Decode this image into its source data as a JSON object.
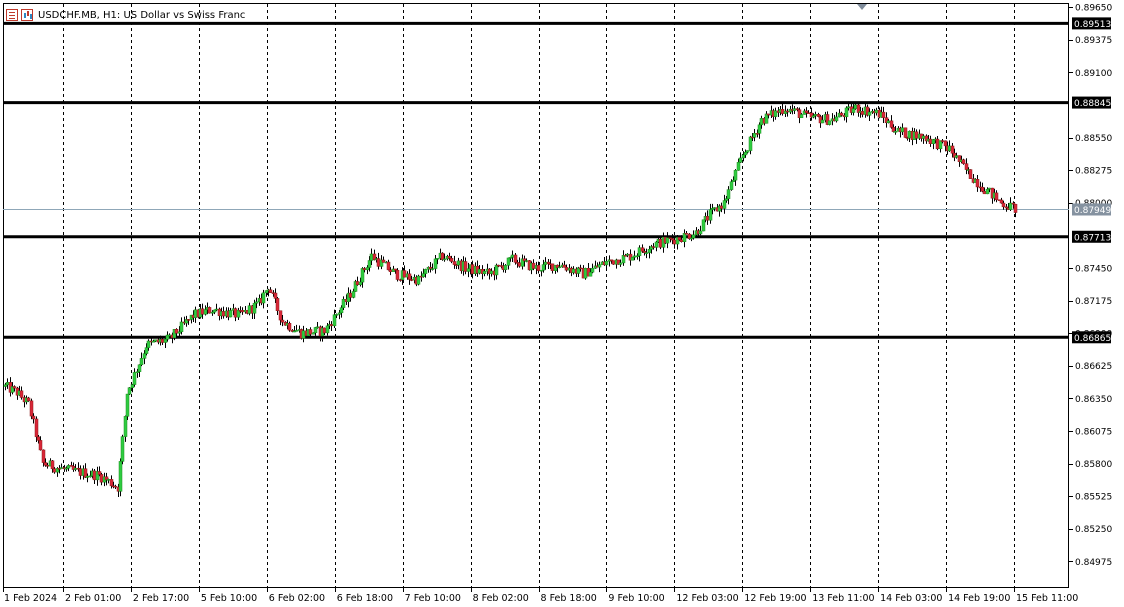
{
  "window": {
    "title": "USDCHF.MB, H1:  US Dollar vs Swiss Franc"
  },
  "icons": {
    "list": "list-icon",
    "chart": "chart-type-icon",
    "scroll": "scroll-marker-icon"
  },
  "colors": {
    "bull": "#2ecc40",
    "bull_dark": "#1e8c1e",
    "bear": "#d92638",
    "level_line": "#000000",
    "bid_line": "#8fa7b8",
    "bid_label_bg": "#8592a0"
  },
  "chart_data": {
    "type": "candlestick",
    "symbol": "USDCHF.MB",
    "timeframe": "H1",
    "description": "US Dollar vs Swiss Franc",
    "ylim": [
      0.8475,
      0.89685
    ],
    "y_ticks": [
      "0.89650",
      "0.89375",
      "0.89100",
      "0.88550",
      "0.88275",
      "0.88000",
      "0.87450",
      "0.87175",
      "0.86900",
      "0.86625",
      "0.86350",
      "0.86075",
      "0.85800",
      "0.85525",
      "0.85250",
      "0.84975"
    ],
    "x_labels": [
      "1 Feb 2024",
      "2 Feb 01:00",
      "2 Feb 17:00",
      "5 Feb 10:00",
      "6 Feb 02:00",
      "6 Feb 18:00",
      "7 Feb 10:00",
      "8 Feb 02:00",
      "8 Feb 18:00",
      "9 Feb 10:00",
      "12 Feb 03:00",
      "12 Feb 19:00",
      "13 Feb 11:00",
      "14 Feb 03:00",
      "14 Feb 19:00",
      "15 Feb 11:00"
    ],
    "grid": "vertical dashed",
    "levels": [
      0.89513,
      0.88845,
      0.87713,
      0.86865
    ],
    "level_labels": [
      "0.89513",
      "0.88845",
      "0.87713",
      "0.86865"
    ],
    "current_price": 0.87949,
    "current_price_label": "0.87949",
    "anchors": [
      [
        0,
        0.8645
      ],
      [
        5,
        0.864
      ],
      [
        10,
        0.863
      ],
      [
        16,
        0.858
      ],
      [
        25,
        0.8575
      ],
      [
        40,
        0.857
      ],
      [
        48,
        0.856
      ],
      [
        52,
        0.864
      ],
      [
        60,
        0.868
      ],
      [
        70,
        0.8685
      ],
      [
        80,
        0.8705
      ],
      [
        88,
        0.871
      ],
      [
        100,
        0.8705
      ],
      [
        108,
        0.8715
      ],
      [
        112,
        0.873
      ],
      [
        118,
        0.87
      ],
      [
        126,
        0.869
      ],
      [
        136,
        0.8692
      ],
      [
        146,
        0.872
      ],
      [
        156,
        0.8755
      ],
      [
        166,
        0.874
      ],
      [
        176,
        0.8735
      ],
      [
        186,
        0.8755
      ],
      [
        196,
        0.8745
      ],
      [
        206,
        0.874
      ],
      [
        216,
        0.8752
      ],
      [
        226,
        0.8745
      ],
      [
        236,
        0.8748
      ],
      [
        246,
        0.874
      ],
      [
        256,
        0.875
      ],
      [
        266,
        0.8755
      ],
      [
        276,
        0.8765
      ],
      [
        286,
        0.877
      ],
      [
        294,
        0.8775
      ],
      [
        300,
        0.879
      ],
      [
        306,
        0.88
      ],
      [
        314,
        0.884
      ],
      [
        322,
        0.887
      ],
      [
        332,
        0.888
      ],
      [
        342,
        0.8872
      ],
      [
        352,
        0.887
      ],
      [
        362,
        0.888
      ],
      [
        372,
        0.8875
      ],
      [
        380,
        0.886
      ],
      [
        392,
        0.8855
      ],
      [
        402,
        0.8845
      ],
      [
        410,
        0.8825
      ],
      [
        418,
        0.881
      ],
      [
        424,
        0.88
      ],
      [
        430,
        0.8795
      ]
    ]
  }
}
